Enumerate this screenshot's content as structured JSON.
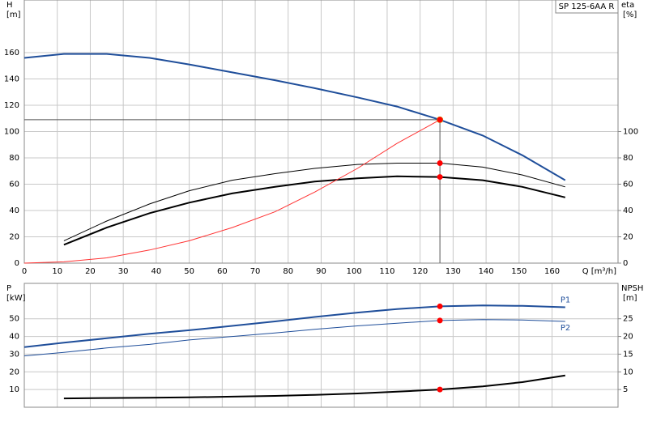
{
  "chart_data": [
    {
      "type": "line",
      "title": "SP 125-6AA R",
      "y_label": "H",
      "y_unit": "[m]",
      "y2_label": "eta",
      "y2_unit": "[%]",
      "x_label": "Q [m³/h]",
      "x": [
        0,
        12,
        25,
        38,
        50,
        63,
        76,
        88,
        101,
        113,
        126,
        139,
        151,
        164
      ],
      "xlim": [
        0,
        180
      ],
      "xticks": [
        0,
        10,
        20,
        30,
        40,
        50,
        60,
        70,
        80,
        90,
        100,
        110,
        120,
        130,
        140,
        150,
        160
      ],
      "ylim": [
        0,
        200
      ],
      "yticks": [
        0,
        20,
        40,
        60,
        80,
        100,
        120,
        140,
        160
      ],
      "y2lim": [
        0,
        200
      ],
      "y2ticks": [
        0,
        20,
        40,
        60,
        80,
        100
      ],
      "grid": true,
      "xtick_labels": true,
      "duty_point": {
        "x": 126,
        "color": "#ffd700"
      },
      "series": [
        {
          "color": "#1f4e9a",
          "line_width": 2,
          "values": [
            156,
            159,
            159,
            156,
            151,
            145,
            139,
            133,
            126,
            119,
            109,
            97,
            82,
            63
          ]
        },
        {
          "color": "#000000",
          "line_width": 1,
          "axis": "y2",
          "values": [
            null,
            17,
            32,
            45,
            55,
            63,
            68,
            72,
            75,
            76,
            76,
            73,
            67,
            58
          ]
        },
        {
          "color": "#000000",
          "line_width": 2,
          "axis": "y2",
          "values": [
            null,
            14,
            27,
            38,
            46,
            53,
            58,
            62,
            64.5,
            66,
            65.5,
            63,
            58,
            50
          ]
        },
        {
          "color": "#ff3333",
          "line_width": 1,
          "values": [
            0,
            1,
            4,
            10,
            17,
            27,
            39,
            54,
            72,
            91,
            109,
            null,
            null,
            null
          ]
        }
      ]
    },
    {
      "type": "line",
      "y_label": "P",
      "y_unit": "[kW]",
      "y2_label": "NPSH",
      "y2_unit": "[m]",
      "x": [
        0,
        12,
        25,
        38,
        50,
        63,
        76,
        88,
        101,
        113,
        126,
        139,
        151,
        164
      ],
      "xlim": [
        0,
        180
      ],
      "xticks": [
        0,
        10,
        20,
        30,
        40,
        50,
        60,
        70,
        80,
        90,
        100,
        110,
        120,
        130,
        140,
        150,
        160
      ],
      "ylim": [
        0,
        70
      ],
      "yticks": [
        10,
        20,
        30,
        40,
        50
      ],
      "y2lim": [
        0,
        35
      ],
      "y2ticks": [
        5,
        10,
        15,
        20,
        25
      ],
      "grid": true,
      "xtick_labels": false,
      "duty_point": {
        "x": 126
      },
      "series": [
        {
          "name": "P1",
          "color": "#1f4e9a",
          "line_width": 2,
          "values": [
            34,
            36.5,
            39,
            41.5,
            43.5,
            46,
            48.5,
            51,
            53.5,
            55.5,
            57,
            57.5,
            57.3,
            56.5
          ]
        },
        {
          "name": "P2",
          "color": "#1f4e9a",
          "line_width": 1,
          "values": [
            29,
            31,
            33.5,
            35.5,
            38,
            40,
            42,
            44,
            46,
            47.5,
            49,
            49.5,
            49.3,
            48.5
          ]
        },
        {
          "color": "#000000",
          "line_width": 2,
          "axis": "y2",
          "values": [
            null,
            2.5,
            2.6,
            2.7,
            2.8,
            3.0,
            3.2,
            3.5,
            3.9,
            4.4,
            5,
            5.9,
            7.1,
            9
          ]
        }
      ]
    }
  ]
}
